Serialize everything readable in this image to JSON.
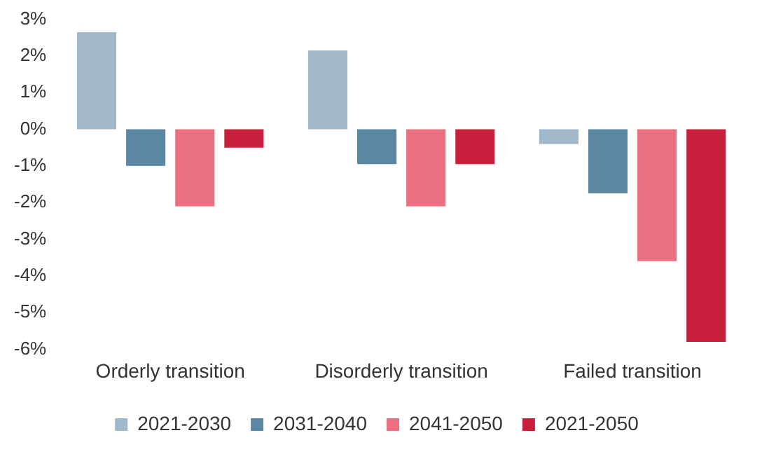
{
  "chart_data": {
    "type": "bar",
    "categories": [
      "Orderly transition",
      "Disorderly transition",
      "Failed transition"
    ],
    "series": [
      {
        "name": "2021-2030",
        "color": "#a0b8c9",
        "values": [
          2.65,
          2.15,
          -0.4
        ]
      },
      {
        "name": "2031-2040",
        "color": "#5b87a3",
        "values": [
          -1.0,
          -0.95,
          -1.75
        ]
      },
      {
        "name": "2041-2050",
        "color": "#ea6f80",
        "values": [
          -2.1,
          -2.1,
          -3.6
        ]
      },
      {
        "name": "2021-2050",
        "color": "#c8203c",
        "values": [
          -0.5,
          -0.95,
          -5.8
        ]
      }
    ],
    "ylim": [
      -6,
      3
    ],
    "yticks": [
      {
        "value": -6,
        "label": "-6%"
      },
      {
        "value": -5,
        "label": "-5%"
      },
      {
        "value": -4,
        "label": "-4%"
      },
      {
        "value": -3,
        "label": "-3%"
      },
      {
        "value": -2,
        "label": "-2%"
      },
      {
        "value": -1,
        "label": "-1%"
      },
      {
        "value": 0,
        "label": "0%"
      },
      {
        "value": 1,
        "label": "1%"
      },
      {
        "value": 2,
        "label": "2%"
      },
      {
        "value": 3,
        "label": "3%"
      }
    ],
    "grid": false,
    "legend": "bottom"
  }
}
